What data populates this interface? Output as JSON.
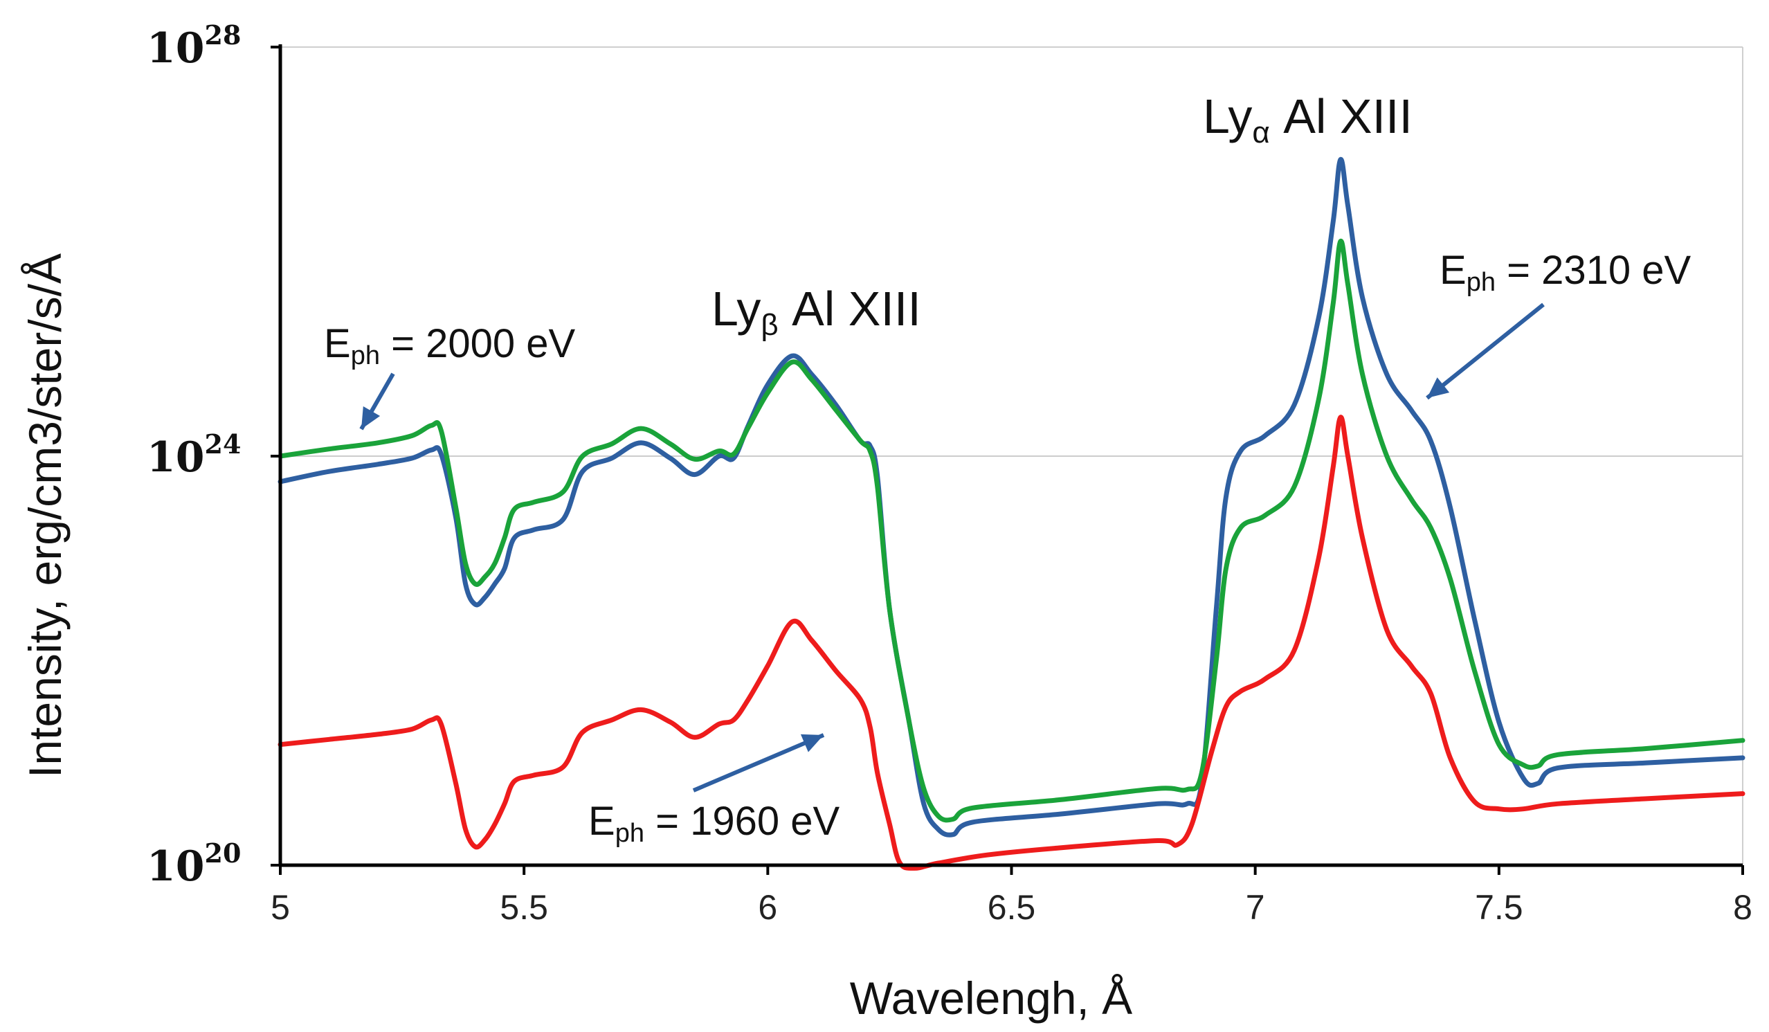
{
  "chart_data": {
    "type": "line",
    "title": "",
    "xlabel": "Wavelengh, Å",
    "ylabel": "Intensity, erg/cm3/ster/s/Å",
    "xlim": [
      5,
      8
    ],
    "ylim_log10": [
      20,
      28
    ],
    "yscale": "log",
    "grid": "horizontal at 1e24",
    "x_ticks": [
      "5",
      "5.5",
      "6",
      "6.5",
      "7",
      "7.5",
      "8"
    ],
    "y_ticks": [
      {
        "base": "10",
        "exp": "20",
        "log10": 20
      },
      {
        "base": "10",
        "exp": "24",
        "log10": 24
      },
      {
        "base": "10",
        "exp": "28",
        "log10": 28
      }
    ],
    "series": [
      {
        "color": "#2E5FA1",
        "log10_intensity": [
          [
            5.0,
            23.75
          ],
          [
            5.1,
            23.85
          ],
          [
            5.2,
            23.92
          ],
          [
            5.27,
            23.98
          ],
          [
            5.31,
            24.06
          ],
          [
            5.33,
            24.02
          ],
          [
            5.36,
            23.4
          ],
          [
            5.38,
            22.75
          ],
          [
            5.4,
            22.55
          ],
          [
            5.42,
            22.62
          ],
          [
            5.44,
            22.75
          ],
          [
            5.46,
            22.9
          ],
          [
            5.48,
            23.2
          ],
          [
            5.52,
            23.28
          ],
          [
            5.58,
            23.38
          ],
          [
            5.62,
            23.85
          ],
          [
            5.68,
            23.98
          ],
          [
            5.74,
            24.13
          ],
          [
            5.8,
            23.98
          ],
          [
            5.85,
            23.82
          ],
          [
            5.9,
            24.0
          ],
          [
            5.93,
            23.98
          ],
          [
            5.96,
            24.3
          ],
          [
            6.0,
            24.7
          ],
          [
            6.05,
            24.98
          ],
          [
            6.09,
            24.8
          ],
          [
            6.14,
            24.5
          ],
          [
            6.19,
            24.15
          ],
          [
            6.21,
            24.1
          ],
          [
            6.225,
            23.8
          ],
          [
            6.25,
            22.5
          ],
          [
            6.29,
            21.4
          ],
          [
            6.32,
            20.6
          ],
          [
            6.35,
            20.35
          ],
          [
            6.38,
            20.3
          ],
          [
            6.42,
            20.42
          ],
          [
            6.6,
            20.5
          ],
          [
            6.8,
            20.6
          ],
          [
            6.86,
            20.6
          ],
          [
            6.89,
            20.8
          ],
          [
            6.92,
            22.5
          ],
          [
            6.94,
            23.6
          ],
          [
            6.97,
            24.05
          ],
          [
            7.02,
            24.2
          ],
          [
            7.08,
            24.5
          ],
          [
            7.13,
            25.35
          ],
          [
            7.16,
            26.3
          ],
          [
            7.175,
            26.9
          ],
          [
            7.19,
            26.45
          ],
          [
            7.22,
            25.55
          ],
          [
            7.27,
            24.8
          ],
          [
            7.32,
            24.45
          ],
          [
            7.36,
            24.15
          ],
          [
            7.4,
            23.5
          ],
          [
            7.45,
            22.4
          ],
          [
            7.5,
            21.4
          ],
          [
            7.55,
            20.85
          ],
          [
            7.58,
            20.8
          ],
          [
            7.62,
            20.95
          ],
          [
            7.8,
            21.0
          ],
          [
            8.0,
            21.05
          ]
        ]
      },
      {
        "color": "#1AA33A",
        "log10_intensity": [
          [
            5.0,
            24.0
          ],
          [
            5.1,
            24.07
          ],
          [
            5.2,
            24.13
          ],
          [
            5.27,
            24.2
          ],
          [
            5.31,
            24.3
          ],
          [
            5.33,
            24.25
          ],
          [
            5.36,
            23.5
          ],
          [
            5.38,
            22.95
          ],
          [
            5.4,
            22.75
          ],
          [
            5.42,
            22.82
          ],
          [
            5.44,
            22.95
          ],
          [
            5.46,
            23.2
          ],
          [
            5.48,
            23.48
          ],
          [
            5.52,
            23.55
          ],
          [
            5.58,
            23.65
          ],
          [
            5.62,
            24.0
          ],
          [
            5.68,
            24.12
          ],
          [
            5.74,
            24.27
          ],
          [
            5.8,
            24.12
          ],
          [
            5.85,
            23.97
          ],
          [
            5.9,
            24.05
          ],
          [
            5.93,
            24.02
          ],
          [
            5.96,
            24.28
          ],
          [
            6.0,
            24.62
          ],
          [
            6.05,
            24.92
          ],
          [
            6.09,
            24.75
          ],
          [
            6.14,
            24.45
          ],
          [
            6.19,
            24.15
          ],
          [
            6.21,
            24.05
          ],
          [
            6.225,
            23.7
          ],
          [
            6.25,
            22.5
          ],
          [
            6.29,
            21.4
          ],
          [
            6.32,
            20.75
          ],
          [
            6.35,
            20.48
          ],
          [
            6.38,
            20.45
          ],
          [
            6.42,
            20.56
          ],
          [
            6.6,
            20.64
          ],
          [
            6.8,
            20.75
          ],
          [
            6.86,
            20.74
          ],
          [
            6.89,
            20.9
          ],
          [
            6.92,
            22.0
          ],
          [
            6.94,
            22.9
          ],
          [
            6.97,
            23.3
          ],
          [
            7.02,
            23.42
          ],
          [
            7.08,
            23.7
          ],
          [
            7.13,
            24.55
          ],
          [
            7.16,
            25.5
          ],
          [
            7.175,
            26.1
          ],
          [
            7.19,
            25.68
          ],
          [
            7.22,
            24.8
          ],
          [
            7.27,
            24.0
          ],
          [
            7.32,
            23.58
          ],
          [
            7.36,
            23.3
          ],
          [
            7.4,
            22.8
          ],
          [
            7.45,
            21.9
          ],
          [
            7.5,
            21.18
          ],
          [
            7.55,
            20.98
          ],
          [
            7.58,
            20.97
          ],
          [
            7.62,
            21.08
          ],
          [
            7.8,
            21.14
          ],
          [
            8.0,
            21.22
          ]
        ]
      },
      {
        "color": "#EE1C1C",
        "log10_intensity": [
          [
            5.0,
            21.18
          ],
          [
            5.1,
            21.23
          ],
          [
            5.2,
            21.28
          ],
          [
            5.27,
            21.33
          ],
          [
            5.31,
            21.42
          ],
          [
            5.33,
            21.38
          ],
          [
            5.36,
            20.8
          ],
          [
            5.38,
            20.35
          ],
          [
            5.4,
            20.18
          ],
          [
            5.42,
            20.25
          ],
          [
            5.44,
            20.4
          ],
          [
            5.46,
            20.6
          ],
          [
            5.48,
            20.82
          ],
          [
            5.52,
            20.88
          ],
          [
            5.58,
            20.96
          ],
          [
            5.62,
            21.3
          ],
          [
            5.68,
            21.42
          ],
          [
            5.74,
            21.52
          ],
          [
            5.8,
            21.4
          ],
          [
            5.85,
            21.25
          ],
          [
            5.9,
            21.38
          ],
          [
            5.93,
            21.42
          ],
          [
            5.96,
            21.62
          ],
          [
            6.0,
            21.95
          ],
          [
            6.05,
            22.38
          ],
          [
            6.09,
            22.2
          ],
          [
            6.14,
            21.9
          ],
          [
            6.19,
            21.62
          ],
          [
            6.21,
            21.35
          ],
          [
            6.225,
            20.9
          ],
          [
            6.25,
            20.4
          ],
          [
            6.27,
            20.03
          ],
          [
            6.3,
            19.97
          ],
          [
            6.35,
            20.02
          ],
          [
            6.45,
            20.1
          ],
          [
            6.6,
            20.17
          ],
          [
            6.8,
            20.24
          ],
          [
            6.84,
            20.2
          ],
          [
            6.87,
            20.4
          ],
          [
            6.91,
            21.1
          ],
          [
            6.94,
            21.55
          ],
          [
            6.97,
            21.7
          ],
          [
            7.02,
            21.82
          ],
          [
            7.08,
            22.1
          ],
          [
            7.13,
            23.0
          ],
          [
            7.16,
            23.9
          ],
          [
            7.175,
            24.38
          ],
          [
            7.19,
            24.0
          ],
          [
            7.22,
            23.2
          ],
          [
            7.27,
            22.3
          ],
          [
            7.32,
            21.95
          ],
          [
            7.36,
            21.68
          ],
          [
            7.4,
            21.05
          ],
          [
            7.45,
            20.62
          ],
          [
            7.5,
            20.55
          ],
          [
            7.55,
            20.55
          ],
          [
            7.62,
            20.6
          ],
          [
            7.8,
            20.65
          ],
          [
            8.0,
            20.7
          ]
        ]
      }
    ],
    "annotations": [
      {
        "id": "ly-beta",
        "main": "Ly",
        "sub": "β",
        "rest": " Al XIII"
      },
      {
        "id": "ly-alpha",
        "main": "Ly",
        "sub": "α",
        "rest": " Al XIII"
      },
      {
        "id": "eph-2000",
        "main": "E",
        "sub": "ph",
        "rest": " = 2000 eV"
      },
      {
        "id": "eph-2310",
        "main": "E",
        "sub": "ph",
        "rest": " = 2310 eV"
      },
      {
        "id": "eph-1960",
        "main": "E",
        "sub": "ph",
        "rest": " = 1960 eV"
      }
    ],
    "arrow_color": "#2E5FA1"
  }
}
